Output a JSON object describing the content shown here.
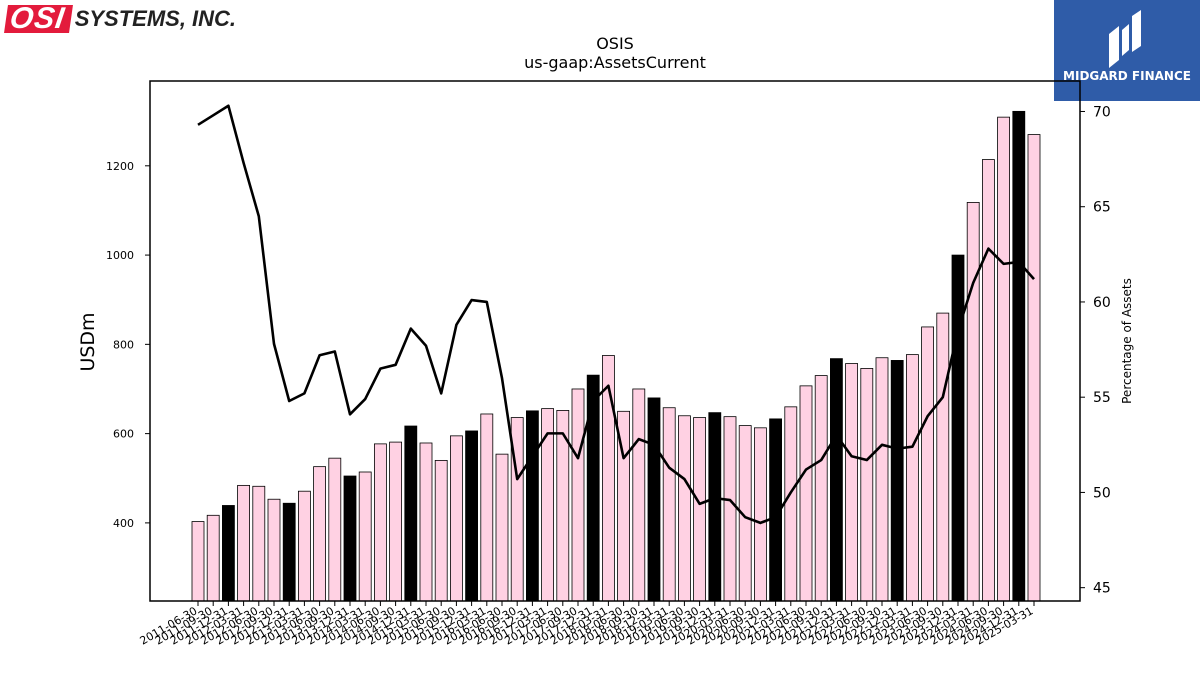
{
  "logo": {
    "badge": "OSI",
    "text": "SYSTEMS, INC."
  },
  "brand": {
    "name": "MIDGARD FINANCE",
    "color": "#2f5ca8"
  },
  "chart_data": {
    "type": "bar",
    "title": "OSIS",
    "subtitle": "us-gaap:AssetsCurrent",
    "ylabel": "USDm",
    "y2label": "Percentage of Assets",
    "ylim": [
      225,
      1390
    ],
    "y2lim": [
      44.3,
      71.6
    ],
    "yticks": [
      400,
      600,
      800,
      1000,
      1200
    ],
    "y2ticks": [
      45,
      50,
      55,
      60,
      65,
      70
    ],
    "colors": {
      "bar": "#ffd1e3",
      "highlight": "#000000",
      "line": "#000000"
    },
    "categories": [
      "2011-06-30",
      "2011-09-30",
      "2011-12-31",
      "2012-03-31",
      "2012-06-30",
      "2012-09-30",
      "2012-12-31",
      "2013-03-31",
      "2013-06-30",
      "2013-09-30",
      "2013-12-31",
      "2014-03-31",
      "2014-06-30",
      "2014-09-30",
      "2014-12-31",
      "2015-03-31",
      "2015-06-30",
      "2015-09-30",
      "2015-12-31",
      "2016-03-31",
      "2016-06-30",
      "2016-09-30",
      "2016-12-31",
      "2017-03-31",
      "2017-06-30",
      "2017-09-30",
      "2017-12-31",
      "2018-03-31",
      "2018-06-30",
      "2018-09-30",
      "2018-12-31",
      "2019-03-31",
      "2019-06-30",
      "2019-09-30",
      "2019-12-31",
      "2020-03-31",
      "2020-06-30",
      "2020-09-30",
      "2020-12-31",
      "2021-03-31",
      "2021-06-30",
      "2021-09-30",
      "2021-12-31",
      "2022-03-31",
      "2022-06-30",
      "2022-09-30",
      "2022-12-31",
      "2023-03-31",
      "2023-06-30",
      "2023-09-30",
      "2023-12-31",
      "2024-03-31",
      "2024-06-30",
      "2024-09-30",
      "2024-12-31",
      "2025-03-31"
    ],
    "series": [
      {
        "type": "bar",
        "axis": "left",
        "values": [
          403,
          417,
          439,
          484,
          482,
          453,
          444,
          471,
          526,
          545,
          505,
          514,
          577,
          581,
          617,
          579,
          540,
          595,
          606,
          644,
          554,
          636,
          651,
          656,
          652,
          700,
          731,
          775,
          650,
          700,
          680,
          658,
          640,
          636,
          647,
          638,
          618,
          613,
          633,
          660,
          707,
          730,
          768,
          757,
          746,
          770,
          764,
          777,
          839,
          870,
          1000,
          1118,
          1214,
          1309,
          1322,
          1270
        ],
        "highlight": [
          false,
          false,
          true,
          false,
          false,
          false,
          true,
          false,
          false,
          false,
          true,
          false,
          false,
          false,
          true,
          false,
          false,
          false,
          true,
          false,
          false,
          false,
          true,
          false,
          false,
          false,
          true,
          false,
          false,
          false,
          true,
          false,
          false,
          false,
          true,
          false,
          false,
          false,
          true,
          false,
          false,
          false,
          true,
          false,
          false,
          false,
          true,
          false,
          false,
          false,
          true,
          false,
          false,
          false,
          true,
          false
        ]
      },
      {
        "type": "line",
        "axis": "right",
        "values": [
          69.3,
          69.8,
          70.3,
          67.3,
          64.5,
          57.8,
          54.8,
          55.2,
          57.2,
          57.4,
          54.1,
          54.9,
          56.5,
          56.7,
          58.6,
          57.7,
          55.2,
          58.8,
          60.1,
          60.0,
          56.0,
          50.7,
          51.9,
          53.1,
          53.1,
          51.8,
          54.8,
          55.6,
          51.8,
          52.8,
          52.5,
          51.3,
          50.7,
          49.4,
          49.7,
          49.6,
          48.7,
          48.4,
          48.7,
          50.0,
          51.2,
          51.7,
          53.0,
          51.9,
          51.7,
          52.5,
          52.3,
          52.4,
          54.0,
          55.0,
          58.5,
          61.0,
          62.8,
          62.0,
          62.1,
          61.2
        ]
      }
    ]
  }
}
